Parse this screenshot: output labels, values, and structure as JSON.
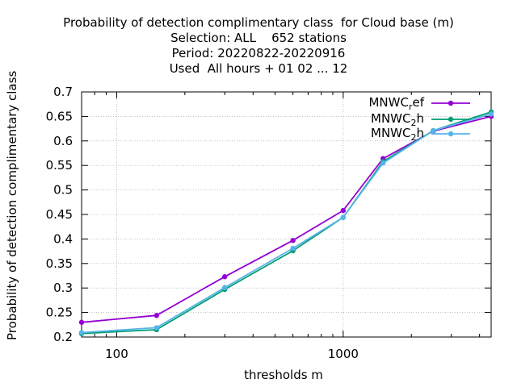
{
  "chart_data": {
    "type": "line",
    "title_lines": [
      "Probability of detection complimentary class  for Cloud base (m)",
      "Selection: ALL    652 stations",
      "Period: 20220822-20220916",
      "Used  All hours + 01 02 ... 12"
    ],
    "xlabel": "thresholds m",
    "ylabel": "Probability of detection complimentary class",
    "xscale": "log",
    "xlim": [
      70,
      4500
    ],
    "ylim": [
      0.2,
      0.7
    ],
    "x_tick_labels": [
      "100",
      "1000"
    ],
    "y_tick_labels": [
      "0.2",
      "0.25",
      "0.3",
      "0.35",
      "0.4",
      "0.45",
      "0.5",
      "0.55",
      "0.6",
      "0.65",
      "0.7"
    ],
    "grid": true,
    "legend_position": "top-right",
    "x": [
      70,
      150,
      300,
      600,
      1000,
      1500,
      2500,
      4500
    ],
    "series": [
      {
        "name": "MNWC_ref",
        "legend_main": "MNWC",
        "legend_sub": "r",
        "legend_tail": "ef",
        "color": "#9400d3",
        "marker": "circle",
        "values": [
          0.23,
          0.244,
          0.323,
          0.397,
          0.458,
          0.564,
          0.62,
          0.65
        ]
      },
      {
        "name": "MNWC_2h",
        "legend_main": "MNWC",
        "legend_sub": "2",
        "legend_tail": "h",
        "color": "#009e73",
        "marker": "circle",
        "values": [
          0.207,
          0.215,
          0.297,
          0.376,
          0.444,
          0.558,
          0.621,
          0.659
        ]
      },
      {
        "name": "MNWC_2h",
        "legend_main": "MNWC",
        "legend_sub": "2",
        "legend_tail": "h",
        "color": "#56b4e9",
        "marker": "circle",
        "values": [
          0.209,
          0.219,
          0.301,
          0.381,
          0.444,
          0.555,
          0.621,
          0.655
        ]
      }
    ]
  }
}
